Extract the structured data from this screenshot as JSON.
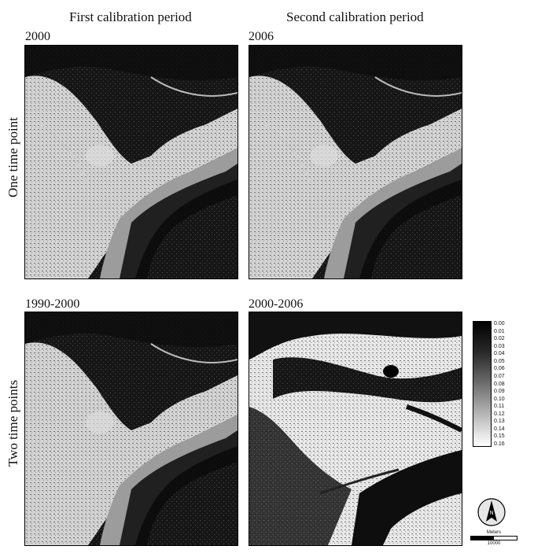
{
  "columns": [
    "First calibration period",
    "Second calibration period"
  ],
  "rows": [
    "One time point",
    "Two time points"
  ],
  "panels": [
    {
      "label": "2000"
    },
    {
      "label": "2006"
    },
    {
      "label": "1990-2000"
    },
    {
      "label": "2000-2006"
    }
  ],
  "legend": {
    "ticks": [
      "0.00",
      "0.01",
      "0.02",
      "0.03",
      "0.04",
      "0.05",
      "0.06",
      "0.07",
      "0.08",
      "0.09",
      "0.10",
      "0.11",
      "0.12",
      "0.13",
      "0.14",
      "0.15",
      "0.16"
    ],
    "color_low": "#000000",
    "color_high": "#ffffff"
  },
  "north_arrow": {
    "letter": "N"
  },
  "scale_bar": {
    "unit": "Meters",
    "value": "10000"
  }
}
